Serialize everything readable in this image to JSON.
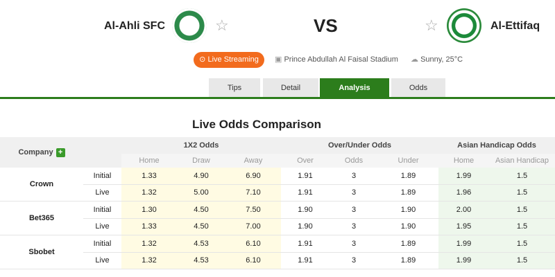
{
  "match": {
    "home": "Al-Ahli SFC",
    "away": "Al-Ettifaq",
    "vs": "VS",
    "live_label": "Live Streaming",
    "stadium": "Prince Abdullah Al Faisal Stadium",
    "weather": "Sunny, 25°C"
  },
  "tabs": [
    {
      "label": "Tips"
    },
    {
      "label": "Detail"
    },
    {
      "label": "Analysis",
      "active": true
    },
    {
      "label": "Odds"
    }
  ],
  "section_title": "Live Odds Comparison",
  "table": {
    "company_header": "Company",
    "groups": [
      "1X2 Odds",
      "Over/Under Odds",
      "Asian Handicap Odds"
    ],
    "subheaders": [
      "Home",
      "Draw",
      "Away",
      "Over",
      "Odds",
      "Under",
      "Home",
      "Asian Handicap"
    ],
    "companies": [
      {
        "name": "Crown",
        "rows": [
          {
            "type": "Initial",
            "v": [
              "1.33",
              "4.90",
              "6.90",
              "1.91",
              "3",
              "1.89",
              "1.99",
              "1.5"
            ]
          },
          {
            "type": "Live",
            "v": [
              "1.32",
              "5.00",
              "7.10",
              "1.91",
              "3",
              "1.89",
              "1.96",
              "1.5"
            ]
          }
        ]
      },
      {
        "name": "Bet365",
        "rows": [
          {
            "type": "Initial",
            "v": [
              "1.30",
              "4.50",
              "7.50",
              "1.90",
              "3",
              "1.90",
              "2.00",
              "1.5"
            ]
          },
          {
            "type": "Live",
            "v": [
              "1.33",
              "4.50",
              "7.00",
              "1.90",
              "3",
              "1.90",
              "1.95",
              "1.5"
            ]
          }
        ]
      },
      {
        "name": "Sbobet",
        "rows": [
          {
            "type": "Initial",
            "v": [
              "1.32",
              "4.53",
              "6.10",
              "1.91",
              "3",
              "1.89",
              "1.99",
              "1.5"
            ]
          },
          {
            "type": "Live",
            "v": [
              "1.32",
              "4.53",
              "6.10",
              "1.91",
              "3",
              "1.89",
              "1.99",
              "1.5"
            ]
          }
        ]
      }
    ]
  },
  "colors": {
    "accent": "#2c7d1c",
    "live": "#f26b1d"
  }
}
